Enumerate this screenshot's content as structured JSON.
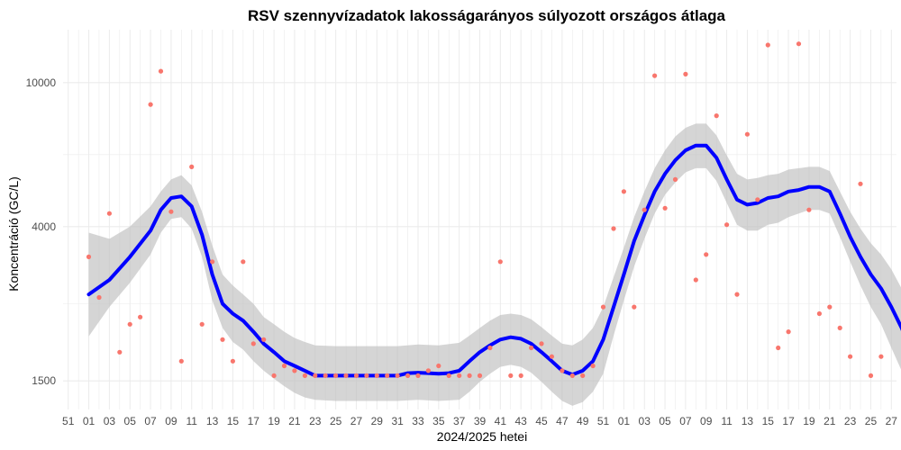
{
  "chart_data": {
    "type": "scatter",
    "title": "RSV szennyvízadatok lakosságarányos súlyozott országos átlaga",
    "xlabel": "2024/2025 hetei",
    "ylabel": "Koncentráció (GC/L)",
    "y_scale": "log",
    "ylim": [
      1250,
      14000
    ],
    "y_ticks": [
      1500,
      4000,
      10000
    ],
    "y_tick_labels": [
      "1500",
      "4000",
      "10000"
    ],
    "xlim": [
      -1.5,
      79.5
    ],
    "x_week_offset": 51,
    "x_tick_labels": [
      "51",
      "01",
      "03",
      "05",
      "07",
      "09",
      "11",
      "13",
      "15",
      "17",
      "19",
      "21",
      "23",
      "25",
      "27",
      "29",
      "31",
      "33",
      "35",
      "37",
      "39",
      "41",
      "43",
      "45",
      "47",
      "49",
      "51",
      "01",
      "03",
      "05",
      "07",
      "09",
      "11",
      "13",
      "15",
      "17",
      "19",
      "21",
      "23",
      "25",
      "27"
    ],
    "grid": true,
    "legend": "none",
    "colors": {
      "points": "#f8766d",
      "smooth": "#0000ff",
      "ribbon": "#bfbfbf",
      "grid": "#ebebeb"
    },
    "points": [
      [
        1,
        3300
      ],
      [
        2,
        2550
      ],
      [
        3,
        4350
      ],
      [
        4,
        1800
      ],
      [
        5,
        2150
      ],
      [
        6,
        2250
      ],
      [
        7,
        8700
      ],
      [
        8,
        10750
      ],
      [
        9,
        4400
      ],
      [
        10,
        1700
      ],
      [
        11,
        5850
      ],
      [
        12,
        2150
      ],
      [
        13,
        3200
      ],
      [
        14,
        1950
      ],
      [
        15,
        1700
      ],
      [
        16,
        3200
      ],
      [
        17,
        1900
      ],
      [
        18,
        1950
      ],
      [
        19,
        1550
      ],
      [
        20,
        1650
      ],
      [
        21,
        1600
      ],
      [
        22,
        1550
      ],
      [
        23,
        1550
      ],
      [
        24,
        1550
      ],
      [
        25,
        1550
      ],
      [
        26,
        1550
      ],
      [
        27,
        1550
      ],
      [
        28,
        1550
      ],
      [
        29,
        1550
      ],
      [
        30,
        1550
      ],
      [
        31,
        1550
      ],
      [
        32,
        1550
      ],
      [
        33,
        1550
      ],
      [
        34,
        1600
      ],
      [
        35,
        1650
      ],
      [
        36,
        1550
      ],
      [
        37,
        1550
      ],
      [
        38,
        1550
      ],
      [
        39,
        1550
      ],
      [
        40,
        1850
      ],
      [
        41,
        3200
      ],
      [
        42,
        1550
      ],
      [
        43,
        1550
      ],
      [
        44,
        1850
      ],
      [
        45,
        1900
      ],
      [
        46,
        1750
      ],
      [
        47,
        1600
      ],
      [
        48,
        1550
      ],
      [
        49,
        1550
      ],
      [
        50,
        1650
      ],
      [
        51,
        2400
      ],
      [
        52,
        3950
      ],
      [
        53,
        5000
      ],
      [
        54,
        2400
      ],
      [
        55,
        4450
      ],
      [
        56,
        10450
      ],
      [
        57,
        4500
      ],
      [
        58,
        5400
      ],
      [
        59,
        10550
      ],
      [
        60,
        2850
      ],
      [
        61,
        3350
      ],
      [
        62,
        8100
      ],
      [
        63,
        4050
      ],
      [
        64,
        2600
      ],
      [
        65,
        7200
      ],
      [
        66,
        4750
      ],
      [
        67,
        12700
      ],
      [
        68,
        1850
      ],
      [
        69,
        2050
      ],
      [
        70,
        12800
      ],
      [
        71,
        4450
      ],
      [
        72,
        2300
      ],
      [
        73,
        2400
      ],
      [
        74,
        2100
      ],
      [
        75,
        1750
      ],
      [
        76,
        5250
      ],
      [
        77,
        1550
      ],
      [
        78,
        1750
      ]
    ],
    "smooth_line": [
      [
        1,
        2600
      ],
      [
        3,
        2850
      ],
      [
        5,
        3300
      ],
      [
        7,
        3900
      ],
      [
        8,
        4450
      ],
      [
        9,
        4800
      ],
      [
        10,
        4850
      ],
      [
        11,
        4550
      ],
      [
        12,
        3800
      ],
      [
        13,
        2950
      ],
      [
        14,
        2450
      ],
      [
        15,
        2300
      ],
      [
        16,
        2200
      ],
      [
        17,
        2050
      ],
      [
        18,
        1900
      ],
      [
        19,
        1800
      ],
      [
        20,
        1700
      ],
      [
        21,
        1650
      ],
      [
        22,
        1600
      ],
      [
        23,
        1550
      ],
      [
        25,
        1550
      ],
      [
        27,
        1550
      ],
      [
        29,
        1550
      ],
      [
        31,
        1550
      ],
      [
        32,
        1575
      ],
      [
        33,
        1580
      ],
      [
        34,
        1575
      ],
      [
        35,
        1570
      ],
      [
        36,
        1575
      ],
      [
        37,
        1600
      ],
      [
        38,
        1700
      ],
      [
        39,
        1800
      ],
      [
        40,
        1880
      ],
      [
        41,
        1950
      ],
      [
        42,
        1980
      ],
      [
        43,
        1960
      ],
      [
        44,
        1900
      ],
      [
        45,
        1800
      ],
      [
        46,
        1700
      ],
      [
        47,
        1600
      ],
      [
        48,
        1560
      ],
      [
        49,
        1600
      ],
      [
        50,
        1700
      ],
      [
        51,
        1950
      ],
      [
        52,
        2400
      ],
      [
        53,
        2950
      ],
      [
        54,
        3650
      ],
      [
        55,
        4300
      ],
      [
        56,
        5000
      ],
      [
        57,
        5600
      ],
      [
        58,
        6100
      ],
      [
        59,
        6500
      ],
      [
        60,
        6700
      ],
      [
        61,
        6700
      ],
      [
        62,
        6200
      ],
      [
        63,
        5400
      ],
      [
        64,
        4750
      ],
      [
        65,
        4600
      ],
      [
        66,
        4650
      ],
      [
        67,
        4800
      ],
      [
        68,
        4850
      ],
      [
        69,
        5000
      ],
      [
        70,
        5050
      ],
      [
        71,
        5150
      ],
      [
        72,
        5150
      ],
      [
        73,
        5000
      ],
      [
        74,
        4350
      ],
      [
        75,
        3750
      ],
      [
        76,
        3300
      ],
      [
        77,
        2950
      ],
      [
        78,
        2700
      ],
      [
        79,
        2400
      ],
      [
        80,
        2100
      ],
      [
        81,
        1800
      ]
    ],
    "ribbon_upper": [
      [
        1,
        3850
      ],
      [
        3,
        3700
      ],
      [
        5,
        4000
      ],
      [
        7,
        4550
      ],
      [
        8,
        5000
      ],
      [
        9,
        5400
      ],
      [
        10,
        5550
      ],
      [
        11,
        5200
      ],
      [
        12,
        4400
      ],
      [
        13,
        3550
      ],
      [
        14,
        2950
      ],
      [
        15,
        2750
      ],
      [
        16,
        2600
      ],
      [
        17,
        2450
      ],
      [
        18,
        2250
      ],
      [
        19,
        2150
      ],
      [
        20,
        2050
      ],
      [
        21,
        1970
      ],
      [
        22,
        1920
      ],
      [
        23,
        1880
      ],
      [
        25,
        1870
      ],
      [
        27,
        1870
      ],
      [
        29,
        1870
      ],
      [
        31,
        1870
      ],
      [
        33,
        1890
      ],
      [
        35,
        1880
      ],
      [
        37,
        1910
      ],
      [
        38,
        2000
      ],
      [
        39,
        2100
      ],
      [
        40,
        2200
      ],
      [
        41,
        2280
      ],
      [
        42,
        2300
      ],
      [
        43,
        2280
      ],
      [
        44,
        2220
      ],
      [
        45,
        2110
      ],
      [
        46,
        2000
      ],
      [
        47,
        1900
      ],
      [
        48,
        1880
      ],
      [
        49,
        1950
      ],
      [
        50,
        2100
      ],
      [
        51,
        2400
      ],
      [
        52,
        2900
      ],
      [
        53,
        3500
      ],
      [
        54,
        4250
      ],
      [
        55,
        5000
      ],
      [
        56,
        5800
      ],
      [
        57,
        6500
      ],
      [
        58,
        7100
      ],
      [
        59,
        7500
      ],
      [
        60,
        7700
      ],
      [
        61,
        7700
      ],
      [
        62,
        7150
      ],
      [
        63,
        6300
      ],
      [
        64,
        5600
      ],
      [
        65,
        5400
      ],
      [
        66,
        5450
      ],
      [
        67,
        5550
      ],
      [
        68,
        5600
      ],
      [
        69,
        5750
      ],
      [
        70,
        5800
      ],
      [
        71,
        5850
      ],
      [
        72,
        5850
      ],
      [
        73,
        5700
      ],
      [
        74,
        5000
      ],
      [
        75,
        4400
      ],
      [
        76,
        3950
      ],
      [
        77,
        3600
      ],
      [
        78,
        3350
      ],
      [
        79,
        3050
      ],
      [
        80,
        2700
      ],
      [
        81,
        2450
      ]
    ],
    "ribbon_lower": [
      [
        1,
        1990
      ],
      [
        3,
        2400
      ],
      [
        5,
        2800
      ],
      [
        7,
        3350
      ],
      [
        8,
        3850
      ],
      [
        9,
        4200
      ],
      [
        10,
        4250
      ],
      [
        11,
        3950
      ],
      [
        12,
        3300
      ],
      [
        13,
        2500
      ],
      [
        14,
        2100
      ],
      [
        15,
        1920
      ],
      [
        16,
        1830
      ],
      [
        17,
        1700
      ],
      [
        18,
        1600
      ],
      [
        19,
        1520
      ],
      [
        20,
        1450
      ],
      [
        21,
        1390
      ],
      [
        22,
        1350
      ],
      [
        23,
        1330
      ],
      [
        25,
        1320
      ],
      [
        27,
        1320
      ],
      [
        29,
        1320
      ],
      [
        31,
        1320
      ],
      [
        33,
        1330
      ],
      [
        35,
        1320
      ],
      [
        37,
        1330
      ],
      [
        38,
        1400
      ],
      [
        39,
        1490
      ],
      [
        40,
        1570
      ],
      [
        41,
        1640
      ],
      [
        42,
        1660
      ],
      [
        43,
        1640
      ],
      [
        44,
        1580
      ],
      [
        45,
        1490
      ],
      [
        46,
        1400
      ],
      [
        47,
        1320
      ],
      [
        48,
        1280
      ],
      [
        49,
        1310
      ],
      [
        50,
        1400
      ],
      [
        51,
        1570
      ],
      [
        52,
        2000
      ],
      [
        53,
        2500
      ],
      [
        54,
        3100
      ],
      [
        55,
        3700
      ],
      [
        56,
        4350
      ],
      [
        57,
        4900
      ],
      [
        58,
        5300
      ],
      [
        59,
        5650
      ],
      [
        60,
        5800
      ],
      [
        61,
        5800
      ],
      [
        62,
        5350
      ],
      [
        63,
        4650
      ],
      [
        64,
        4050
      ],
      [
        65,
        3900
      ],
      [
        66,
        3900
      ],
      [
        67,
        4050
      ],
      [
        68,
        4100
      ],
      [
        69,
        4250
      ],
      [
        70,
        4350
      ],
      [
        71,
        4450
      ],
      [
        72,
        4450
      ],
      [
        73,
        4350
      ],
      [
        74,
        3750
      ],
      [
        75,
        3200
      ],
      [
        76,
        2750
      ],
      [
        77,
        2400
      ],
      [
        78,
        2150
      ],
      [
        79,
        1850
      ],
      [
        80,
        1600
      ],
      [
        81,
        1350
      ]
    ]
  }
}
